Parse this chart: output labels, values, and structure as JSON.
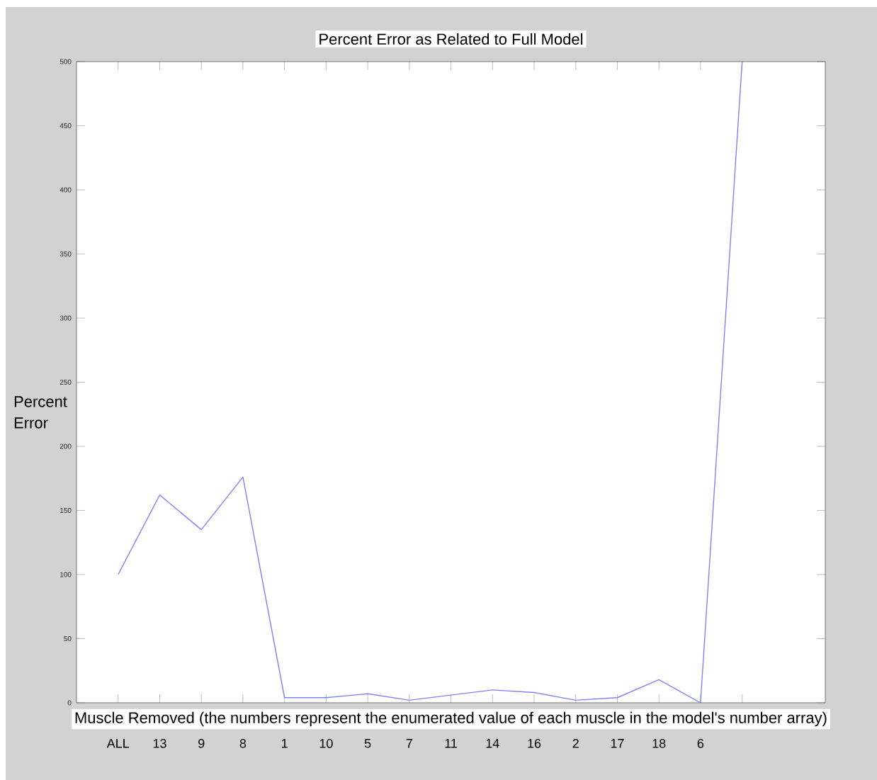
{
  "chart_data": {
    "type": "line",
    "title": "Percent Error as Related to Full Model",
    "xlabel": "Muscle Removed (the numbers represent the enumerated value of each muscle in the model's number array)",
    "ylabel": "Percent Error",
    "categories": [
      "ALL",
      "13",
      "9",
      "8",
      "1",
      "10",
      "5",
      "7",
      "11",
      "14",
      "16",
      "2",
      "17",
      "18",
      "6",
      null
    ],
    "values": [
      100,
      162,
      135,
      176,
      4,
      4,
      7,
      2,
      6,
      10,
      8,
      2,
      4,
      18,
      0,
      500
    ],
    "color": "#8080ff",
    "line_style": "solid",
    "ylim": [
      0,
      500
    ],
    "yticks": [
      0,
      50,
      100,
      150,
      200,
      250,
      300,
      350,
      400,
      450,
      500
    ]
  }
}
